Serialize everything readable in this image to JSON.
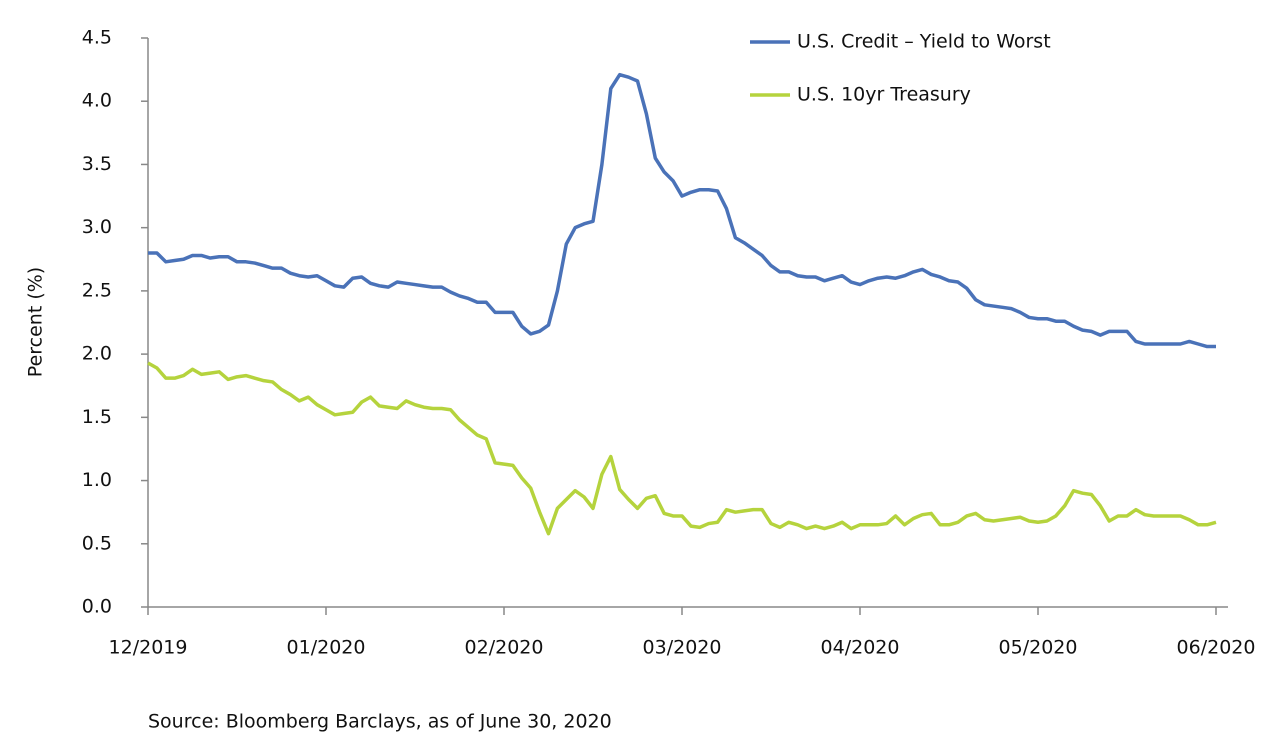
{
  "chart_data": {
    "type": "line",
    "y_label": "Percent (%)",
    "source": "Source: Bloomberg Barclays, as of June 30, 2020",
    "legend": "top-right",
    "grid": false,
    "ylim": [
      0,
      4.5
    ],
    "yticks": [
      {
        "value": 0,
        "label": "0.0"
      },
      0.5,
      {
        "value": 1,
        "label": "1.0"
      },
      1.5,
      {
        "value": 2,
        "label": "2.0"
      },
      2.5,
      {
        "value": 3,
        "label": "3.0"
      },
      3.5,
      {
        "value": 4,
        "label": "4.0"
      },
      4.5
    ],
    "categories": [
      "12/2019",
      null,
      null,
      null,
      null,
      null,
      null,
      null,
      null,
      null,
      null,
      null,
      null,
      null,
      null,
      null,
      null,
      null,
      null,
      null,
      "01/2020",
      null,
      null,
      null,
      null,
      null,
      null,
      null,
      null,
      null,
      null,
      null,
      null,
      null,
      null,
      null,
      null,
      null,
      null,
      null,
      "02/2020",
      null,
      null,
      null,
      null,
      null,
      null,
      null,
      null,
      null,
      null,
      null,
      null,
      null,
      null,
      null,
      null,
      null,
      null,
      null,
      "03/2020",
      null,
      null,
      null,
      null,
      null,
      null,
      null,
      null,
      null,
      null,
      null,
      null,
      null,
      null,
      null,
      null,
      null,
      null,
      null,
      "04/2020",
      null,
      null,
      null,
      null,
      null,
      null,
      null,
      null,
      null,
      null,
      null,
      null,
      null,
      null,
      null,
      null,
      null,
      null,
      null,
      "05/2020",
      null,
      null,
      null,
      null,
      null,
      null,
      null,
      null,
      null,
      null,
      null,
      null,
      null,
      null,
      null,
      null,
      null,
      null,
      null,
      "06/2020"
    ],
    "series": [
      {
        "name": "U.S. Credit – Yield to Worst",
        "color": "#4a72b8",
        "values": [
          2.8,
          2.8,
          2.73,
          2.74,
          2.75,
          2.78,
          2.78,
          2.76,
          2.77,
          2.77,
          2.73,
          2.73,
          2.72,
          2.7,
          2.68,
          2.68,
          2.64,
          2.62,
          2.61,
          2.62,
          2.58,
          2.54,
          2.53,
          2.6,
          2.61,
          2.56,
          2.54,
          2.53,
          2.57,
          2.56,
          2.55,
          2.54,
          2.53,
          2.53,
          2.49,
          2.46,
          2.44,
          2.41,
          2.41,
          2.33,
          2.33,
          2.33,
          2.22,
          2.16,
          2.18,
          2.23,
          2.5,
          2.87,
          3.0,
          3.03,
          3.05,
          3.5,
          4.1,
          4.21,
          4.19,
          4.16,
          3.9,
          3.55,
          3.44,
          3.37,
          3.25,
          3.28,
          3.3,
          3.3,
          3.29,
          3.15,
          2.92,
          2.88,
          2.83,
          2.78,
          2.7,
          2.65,
          2.65,
          2.62,
          2.61,
          2.61,
          2.58,
          2.6,
          2.62,
          2.57,
          2.55,
          2.58,
          2.6,
          2.61,
          2.6,
          2.62,
          2.65,
          2.67,
          2.63,
          2.61,
          2.58,
          2.57,
          2.52,
          2.43,
          2.39,
          2.38,
          2.37,
          2.36,
          2.33,
          2.29,
          2.28,
          2.28,
          2.26,
          2.26,
          2.22,
          2.19,
          2.18,
          2.15,
          2.18,
          2.18,
          2.18,
          2.1,
          2.08,
          2.08,
          2.08,
          2.08,
          2.08,
          2.1,
          2.08,
          2.06,
          2.06
        ]
      },
      {
        "name": "U.S. 10yr Treasury",
        "color": "#b5d33d",
        "values": [
          1.93,
          1.89,
          1.81,
          1.81,
          1.83,
          1.88,
          1.84,
          1.85,
          1.86,
          1.8,
          1.82,
          1.83,
          1.81,
          1.79,
          1.78,
          1.72,
          1.68,
          1.63,
          1.66,
          1.6,
          1.56,
          1.52,
          1.53,
          1.54,
          1.62,
          1.66,
          1.59,
          1.58,
          1.57,
          1.63,
          1.6,
          1.58,
          1.57,
          1.57,
          1.56,
          1.48,
          1.42,
          1.36,
          1.33,
          1.14,
          1.13,
          1.12,
          1.02,
          0.94,
          0.75,
          0.58,
          0.78,
          0.85,
          0.92,
          0.87,
          0.78,
          1.05,
          1.19,
          0.93,
          0.85,
          0.78,
          0.86,
          0.88,
          0.74,
          0.72,
          0.72,
          0.64,
          0.63,
          0.66,
          0.67,
          0.77,
          0.75,
          0.76,
          0.77,
          0.77,
          0.66,
          0.63,
          0.67,
          0.65,
          0.62,
          0.64,
          0.62,
          0.64,
          0.67,
          0.62,
          0.65,
          0.65,
          0.65,
          0.66,
          0.72,
          0.65,
          0.7,
          0.73,
          0.74,
          0.65,
          0.65,
          0.67,
          0.72,
          0.74,
          0.69,
          0.68,
          0.69,
          0.7,
          0.71,
          0.68,
          0.67,
          0.68,
          0.72,
          0.8,
          0.92,
          0.9,
          0.89,
          0.8,
          0.68,
          0.72,
          0.72,
          0.77,
          0.73,
          0.72,
          0.72,
          0.72,
          0.72,
          0.69,
          0.65,
          0.65,
          0.67
        ]
      }
    ]
  }
}
